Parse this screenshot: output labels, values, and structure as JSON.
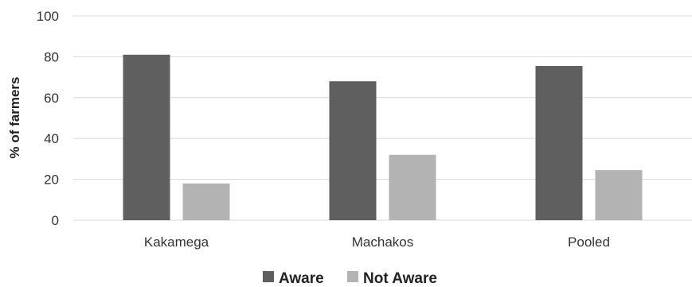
{
  "chart_data": {
    "type": "bar",
    "categories": [
      "Kakamega",
      "Machakos",
      "Pooled"
    ],
    "series": [
      {
        "name": "Aware",
        "values": [
          81,
          68,
          75.5
        ],
        "color": "#5f5f5f"
      },
      {
        "name": "Not Aware",
        "values": [
          18,
          32,
          24.5
        ],
        "color": "#b3b3b3"
      }
    ],
    "ylabel": "% of farmers",
    "ylim": [
      0,
      100
    ],
    "yticks": [
      0,
      20,
      40,
      60,
      80,
      100
    ],
    "grid": true,
    "legend_position": "bottom"
  }
}
